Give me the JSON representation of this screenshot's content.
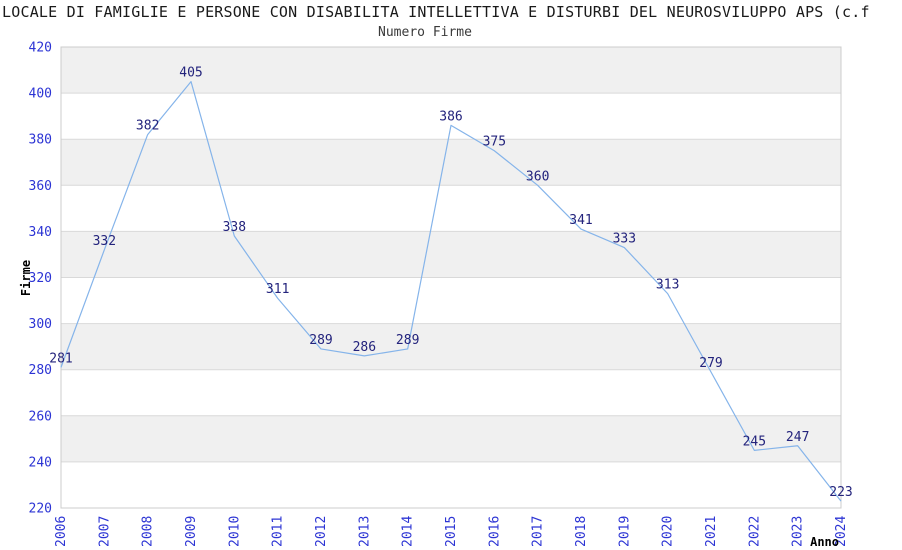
{
  "chart_data": {
    "type": "line",
    "title": "LOCALE DI FAMIGLIE E PERSONE CON DISABILITA INTELLETTIVA E DISTURBI DEL NEUROSVILUPPO APS (c.f",
    "subtitle": "Numero Firme",
    "xlabel": "Anno",
    "ylabel": "Firme",
    "x": [
      2006,
      2007,
      2008,
      2009,
      2010,
      2011,
      2012,
      2013,
      2014,
      2015,
      2016,
      2017,
      2018,
      2019,
      2020,
      2021,
      2022,
      2023,
      2024
    ],
    "series": [
      {
        "name": "Numero Firme",
        "values": [
          281,
          332,
          382,
          405,
          338,
          311,
          289,
          286,
          289,
          386,
          375,
          360,
          341,
          333,
          313,
          279,
          245,
          247,
          223
        ]
      }
    ],
    "ylim": [
      220,
      420
    ],
    "ytick_step": 20,
    "yticks": [
      220,
      240,
      260,
      280,
      300,
      320,
      340,
      360,
      380,
      400,
      420
    ],
    "grid": true,
    "band_fill": true,
    "legend": "none",
    "point_labels": true,
    "colors": {
      "line": "#85b4ea",
      "tick_label": "#2c34d4",
      "data_label": "#23237c",
      "band": "#f0f0f0",
      "grid": "#d9d9d9",
      "border": "#cccccc",
      "title": "#1a1a1a",
      "subtitle": "#3a3a3a",
      "axis_title": "#000000"
    }
  }
}
